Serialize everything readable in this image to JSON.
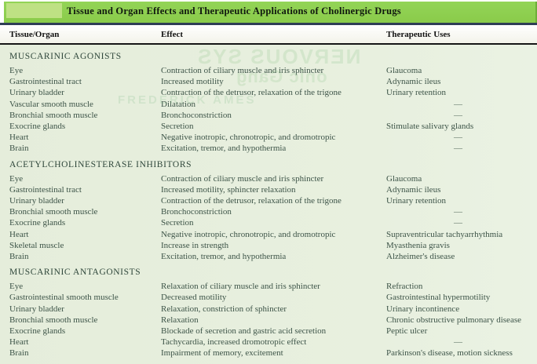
{
  "table": {
    "title": "Tissue and Organ Effects and Therapeutic Applications of Cholinergic Drugs",
    "title_bar_color": "#8ecf4e",
    "title_label_box_color": "#bee184",
    "body_background_color": "#e7efdd",
    "columns": [
      "Tissue/Organ",
      "Effect",
      "Therapeutic Uses"
    ],
    "empty_cell_symbol": "—",
    "sections": [
      {
        "heading": "MUSCARINIC AGONISTS",
        "rows": [
          [
            "Eye",
            "Contraction of ciliary muscle and iris sphincter",
            "Glaucoma"
          ],
          [
            "Gastrointestinal tract",
            "Increased motility",
            "Adynamic ileus"
          ],
          [
            "Urinary bladder",
            "Contraction of the detrusor, relaxation of the trigone",
            "Urinary retention"
          ],
          [
            "Vascular smooth muscle",
            "Dilatation",
            "—"
          ],
          [
            "Bronchial smooth muscle",
            "Bronchoconstriction",
            "—"
          ],
          [
            "Exocrine glands",
            "Secretion",
            "Stimulate salivary glands"
          ],
          [
            "Heart",
            "Negative inotropic, chronotropic, and dromotropic",
            "—"
          ],
          [
            "Brain",
            "Excitation, tremor, and hypothermia",
            "—"
          ]
        ]
      },
      {
        "heading": "ACETYLCHOLINESTERASE INHIBITORS",
        "rows": [
          [
            "Eye",
            "Contraction of ciliary muscle and iris sphincter",
            "Glaucoma"
          ],
          [
            "Gastrointestinal tract",
            "Increased motility, sphincter relaxation",
            "Adynamic ileus"
          ],
          [
            "Urinary bladder",
            "Contraction of the detrusor, relaxation of the trigone",
            "Urinary retention"
          ],
          [
            "Bronchial smooth muscle",
            "Bronchoconstriction",
            "—"
          ],
          [
            "Exocrine glands",
            "Secretion",
            "—"
          ],
          [
            "Heart",
            "Negative inotropic, chronotropic, and dromotropic",
            "Supraventricular tachyarrhythmia"
          ],
          [
            "Skeletal muscle",
            "Increase in strength",
            "Myasthenia gravis"
          ],
          [
            "Brain",
            "Excitation, tremor, and hypothermia",
            "Alzheimer's disease"
          ]
        ]
      },
      {
        "heading": "MUSCARINIC ANTAGONISTS",
        "rows": [
          [
            "Eye",
            "Relaxation of ciliary muscle and iris sphincter",
            "Refraction"
          ],
          [
            "Gastrointestinal smooth muscle",
            "Decreased motility",
            "Gastrointestinal hypermotility"
          ],
          [
            "Urinary bladder",
            "Relaxation, constriction of sphincter",
            "Urinary incontinence"
          ],
          [
            "Bronchial smooth muscle",
            "Relaxation",
            "Chronic obstructive pulmonary disease"
          ],
          [
            "Exocrine glands",
            "Blockade of secretion and gastric acid secretion",
            "Peptic ulcer"
          ],
          [
            "Heart",
            "Tachycardia, increased dromotropic effect",
            "—"
          ],
          [
            "Brain",
            "Impairment of memory, excitement",
            "Parkinson's disease, motion sickness"
          ]
        ]
      }
    ]
  },
  "bleed_through_ghost_text": [
    "NERVOUS SYS",
    "onic Gang",
    "FREDERICK AMES"
  ]
}
